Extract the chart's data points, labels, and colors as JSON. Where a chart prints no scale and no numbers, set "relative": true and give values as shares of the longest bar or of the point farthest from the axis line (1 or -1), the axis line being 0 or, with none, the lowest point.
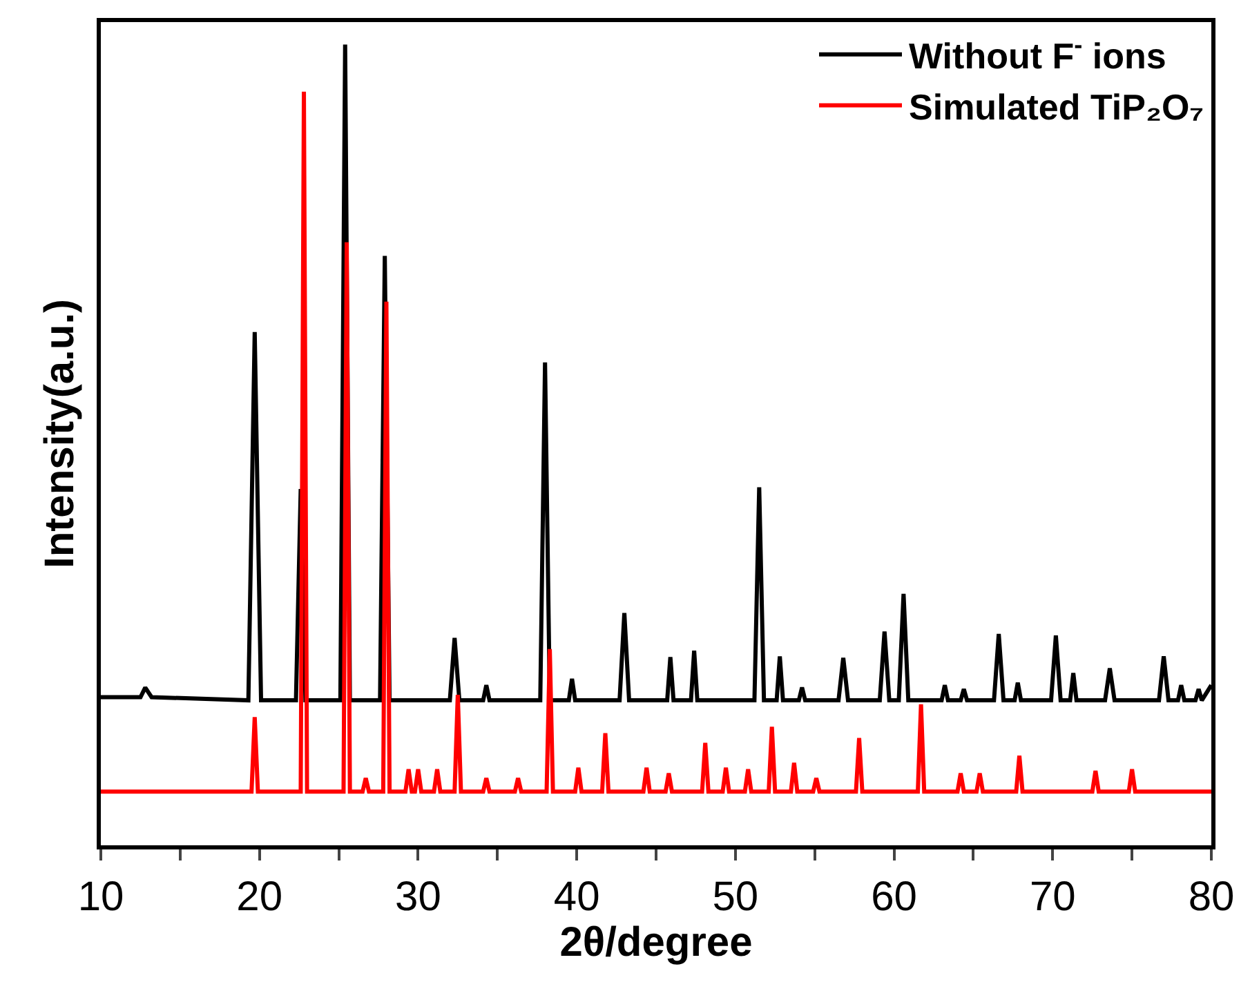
{
  "chart_data": {
    "type": "line",
    "relative": true,
    "xlabel": "2θ/degree",
    "ylabel": "Intensity(a.u.)",
    "xlim": [
      10,
      80
    ],
    "xticks": [
      10,
      {
        "value": 15,
        "label": null
      },
      20,
      {
        "value": 25,
        "label": null
      },
      30,
      {
        "value": 35,
        "label": null
      },
      40,
      {
        "value": 45,
        "label": null
      },
      50,
      {
        "value": 55,
        "label": null
      },
      60,
      {
        "value": 65,
        "label": null
      },
      70,
      {
        "value": 75,
        "label": null
      },
      80
    ],
    "legend": "top right",
    "marker": "none",
    "line_style": "solid",
    "series": [
      {
        "name": "Without F$^{-}$ ions",
        "color": "#000000",
        "x": [
          10,
          12.5,
          12.8,
          13.2,
          19.3,
          19.7,
          20.1,
          22.3,
          22.6,
          22.9,
          25.1,
          25.4,
          25.7,
          27.6,
          27.9,
          28.2,
          32.0,
          32.3,
          32.6,
          34.1,
          34.3,
          34.5,
          37.7,
          38.0,
          38.3,
          39.5,
          39.7,
          39.9,
          42.7,
          43.0,
          43.3,
          45.7,
          45.9,
          46.1,
          47.2,
          47.4,
          47.6,
          51.2,
          51.5,
          51.8,
          52.6,
          52.8,
          53.0,
          54.0,
          54.2,
          54.4,
          56.5,
          56.8,
          57.1,
          59.1,
          59.4,
          59.7,
          60.3,
          60.6,
          60.9,
          63.0,
          63.2,
          63.4,
          64.2,
          64.4,
          64.6,
          66.3,
          66.6,
          66.9,
          67.6,
          67.8,
          68.0,
          69.9,
          70.2,
          70.5,
          71.1,
          71.3,
          71.5,
          73.3,
          73.6,
          73.9,
          76.7,
          77.0,
          77.3,
          77.9,
          78.1,
          78.3,
          79.0,
          79.2,
          79.4,
          80
        ],
        "values": [
          0.185,
          0.185,
          0.197,
          0.185,
          0.181,
          0.641,
          0.181,
          0.181,
          0.445,
          0.181,
          0.181,
          1.0,
          0.181,
          0.181,
          0.736,
          0.181,
          0.181,
          0.259,
          0.181,
          0.181,
          0.2,
          0.181,
          0.181,
          0.603,
          0.181,
          0.181,
          0.208,
          0.181,
          0.181,
          0.29,
          0.181,
          0.181,
          0.235,
          0.181,
          0.181,
          0.243,
          0.181,
          0.181,
          0.447,
          0.181,
          0.181,
          0.236,
          0.181,
          0.181,
          0.197,
          0.181,
          0.181,
          0.234,
          0.181,
          0.181,
          0.267,
          0.181,
          0.181,
          0.314,
          0.181,
          0.181,
          0.2,
          0.181,
          0.181,
          0.195,
          0.181,
          0.181,
          0.264,
          0.181,
          0.181,
          0.203,
          0.181,
          0.181,
          0.262,
          0.181,
          0.181,
          0.215,
          0.181,
          0.181,
          0.221,
          0.181,
          0.181,
          0.236,
          0.181,
          0.181,
          0.2,
          0.181,
          0.181,
          0.195,
          0.181,
          0.2
        ]
      },
      {
        "name": "Simulated TiP₂O₇",
        "color": "#ff0000",
        "x": [
          10,
          19.5,
          19.7,
          19.9,
          22.6,
          22.8,
          23.0,
          25.3,
          25.5,
          25.7,
          26.5,
          26.7,
          26.9,
          27.8,
          28.0,
          28.2,
          29.2,
          29.4,
          29.6,
          29.8,
          30.0,
          30.2,
          31.0,
          31.2,
          31.4,
          32.3,
          32.5,
          32.7,
          34.1,
          34.3,
          34.5,
          36.1,
          36.3,
          36.5,
          38.1,
          38.3,
          38.5,
          39.9,
          40.1,
          40.3,
          41.6,
          41.8,
          42.0,
          44.2,
          44.4,
          44.6,
          45.6,
          45.8,
          46.0,
          47.9,
          48.1,
          48.3,
          49.2,
          49.4,
          49.6,
          50.6,
          50.8,
          51.0,
          52.1,
          52.3,
          52.5,
          53.5,
          53.7,
          53.9,
          54.9,
          55.1,
          55.3,
          57.6,
          57.8,
          58.0,
          61.5,
          61.7,
          61.9,
          64.0,
          64.2,
          64.4,
          65.2,
          65.4,
          65.6,
          67.7,
          67.9,
          68.1,
          72.5,
          72.7,
          72.9,
          74.8,
          75.0,
          75.2,
          80
        ],
        "values": [
          0.067,
          0.067,
          0.16,
          0.067,
          0.067,
          0.941,
          0.067,
          0.067,
          0.753,
          0.067,
          0.067,
          0.084,
          0.067,
          0.067,
          0.679,
          0.067,
          0.067,
          0.095,
          0.067,
          0.067,
          0.095,
          0.067,
          0.067,
          0.095,
          0.067,
          0.067,
          0.188,
          0.067,
          0.067,
          0.084,
          0.067,
          0.067,
          0.084,
          0.067,
          0.067,
          0.245,
          0.067,
          0.067,
          0.097,
          0.067,
          0.067,
          0.14,
          0.067,
          0.067,
          0.097,
          0.067,
          0.067,
          0.09,
          0.067,
          0.067,
          0.128,
          0.067,
          0.067,
          0.097,
          0.067,
          0.067,
          0.095,
          0.067,
          0.067,
          0.148,
          0.067,
          0.067,
          0.103,
          0.067,
          0.067,
          0.084,
          0.067,
          0.067,
          0.134,
          0.067,
          0.067,
          0.176,
          0.067,
          0.067,
          0.09,
          0.067,
          0.067,
          0.09,
          0.067,
          0.067,
          0.112,
          0.067,
          0.067,
          0.093,
          0.067,
          0.067,
          0.095,
          0.067,
          0.067
        ]
      }
    ]
  }
}
